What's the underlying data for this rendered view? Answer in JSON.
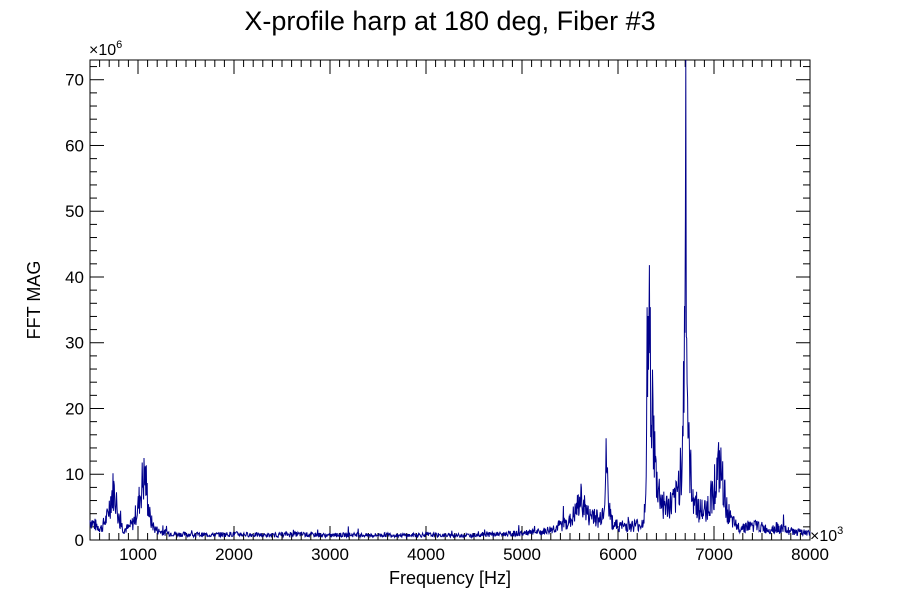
{
  "chart_data": {
    "type": "line",
    "title": "X-profile harp at 180 deg, Fiber #3",
    "xlabel": "Frequency [Hz]",
    "ylabel": "FFT MAG",
    "x_multiplier": "×10",
    "x_multiplier_exp": "3",
    "y_multiplier": "×10",
    "y_multiplier_exp": "6",
    "xlim": [
      500,
      8000
    ],
    "ylim": [
      0,
      73
    ],
    "x_ticks": [
      1000,
      2000,
      3000,
      4000,
      5000,
      6000,
      7000,
      8000
    ],
    "y_ticks": [
      0,
      10,
      20,
      30,
      40,
      50,
      60,
      70
    ],
    "line_color": "#00008b",
    "grid": false,
    "legend": "none",
    "series": [
      {
        "x": [
          500,
          560,
          620,
          680,
          720,
          745,
          770,
          800,
          850,
          900,
          950,
          1000,
          1040,
          1070,
          1085,
          1100,
          1130,
          1170,
          1220,
          1300,
          1400,
          1600,
          1800,
          2000,
          2200,
          2400,
          2600,
          2800,
          3000,
          3200,
          3400,
          3600,
          3800,
          4000,
          4200,
          4400,
          4600,
          4800,
          5000,
          5200,
          5300,
          5400,
          5500,
          5560,
          5600,
          5630,
          5660,
          5700,
          5750,
          5800,
          5850,
          5880,
          5900,
          5930,
          5980,
          6050,
          6150,
          6250,
          6290,
          6295,
          6300,
          6310,
          6330,
          6350,
          6370,
          6400,
          6450,
          6500,
          6550,
          6600,
          6640,
          6670,
          6690,
          6700,
          6705,
          6710,
          6720,
          6740,
          6770,
          6800,
          6850,
          6900,
          6950,
          6990,
          7030,
          7060,
          7080,
          7100,
          7130,
          7180,
          7250,
          7350,
          7450,
          7550,
          7650,
          7750,
          7850,
          7950,
          8000
        ],
        "y": [
          3,
          2.2,
          1.8,
          3.5,
          6.5,
          7.8,
          6.2,
          3.2,
          1.6,
          1.8,
          2.6,
          5,
          8.5,
          9.8,
          8.6,
          6,
          3,
          1.8,
          1.3,
          1.1,
          0.9,
          0.8,
          0.8,
          0.9,
          0.8,
          0.7,
          0.9,
          0.8,
          0.7,
          0.8,
          0.7,
          0.8,
          0.7,
          0.8,
          0.7,
          0.7,
          0.8,
          0.9,
          1,
          1.2,
          1.6,
          2.2,
          2.8,
          4.2,
          5.8,
          6.2,
          4.6,
          3.4,
          4.2,
          2.8,
          5,
          11.8,
          5.5,
          3,
          2.2,
          2.1,
          2.2,
          2.4,
          5,
          14,
          31.5,
          27,
          30,
          24,
          15,
          9,
          6,
          5,
          5.3,
          6,
          9,
          14,
          25,
          45,
          69.5,
          52,
          24,
          12,
          8,
          6,
          4.5,
          4.3,
          5.5,
          7.5,
          9.8,
          10.8,
          9.5,
          7.5,
          5,
          2.8,
          1.9,
          2.1,
          2.2,
          1.6,
          1.9,
          1.5,
          1.2,
          1.1,
          1
        ]
      }
    ]
  }
}
